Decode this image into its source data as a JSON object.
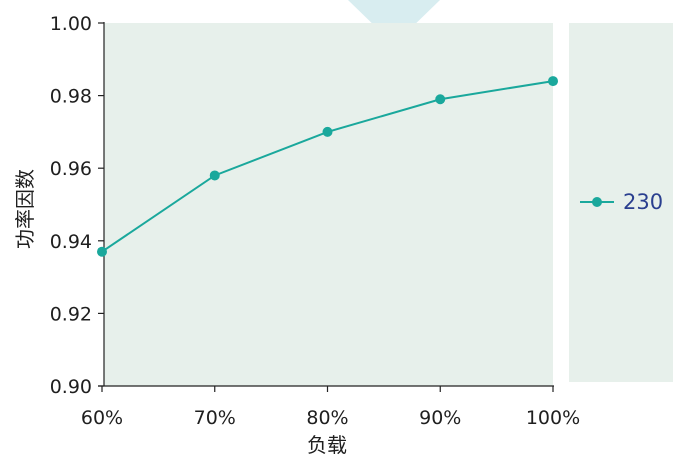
{
  "colors": {
    "plot_background": "#e7f0eb",
    "series_line": "#1aa89c",
    "axis": "#222222",
    "decoration": "#d8edf0",
    "legend_text": "#2a3f8f"
  },
  "chart_data": {
    "type": "line",
    "xlabel": "负载",
    "ylabel": "功率因数",
    "x": [
      "60%",
      "70%",
      "80%",
      "90%",
      "100%"
    ],
    "ylim": [
      0.9,
      1.0
    ],
    "yticks": [
      "0.90",
      "0.92",
      "0.94",
      "0.96",
      "0.98",
      "1.00"
    ],
    "grid": false,
    "legend_position": "right",
    "series": [
      {
        "name": "230",
        "values": [
          0.937,
          0.958,
          0.97,
          0.979,
          0.984
        ]
      }
    ]
  }
}
